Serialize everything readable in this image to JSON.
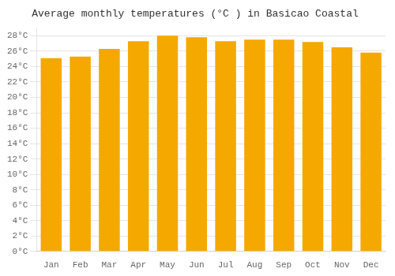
{
  "chart_data": {
    "type": "bar",
    "title": "Average monthly temperatures (°C ) in Basicao Coastal",
    "categories": [
      "Jan",
      "Feb",
      "Mar",
      "Apr",
      "May",
      "Jun",
      "Jul",
      "Aug",
      "Sep",
      "Oct",
      "Nov",
      "Dec"
    ],
    "values": [
      25.1,
      25.3,
      26.3,
      27.3,
      28.0,
      27.8,
      27.3,
      27.5,
      27.5,
      27.2,
      26.5,
      25.8
    ],
    "color": "#F5A800",
    "ylim": [
      0,
      29
    ],
    "yticks": [
      {
        "value": 0,
        "label": "0°C"
      },
      {
        "value": 2,
        "label": "2°C"
      },
      {
        "value": 4,
        "label": "4°C"
      },
      {
        "value": 6,
        "label": "6°C"
      },
      {
        "value": 8,
        "label": "8°C"
      },
      {
        "value": 10,
        "label": "10°C"
      },
      {
        "value": 12,
        "label": "12°C"
      },
      {
        "value": 14,
        "label": "14°C"
      },
      {
        "value": 16,
        "label": "16°C"
      },
      {
        "value": 18,
        "label": "18°C"
      },
      {
        "value": 20,
        "label": "20°C"
      },
      {
        "value": 22,
        "label": "22°C"
      },
      {
        "value": 24,
        "label": "24°C"
      },
      {
        "value": 26,
        "label": "26°C"
      },
      {
        "value": 28,
        "label": "28°C"
      }
    ],
    "grid": true
  }
}
